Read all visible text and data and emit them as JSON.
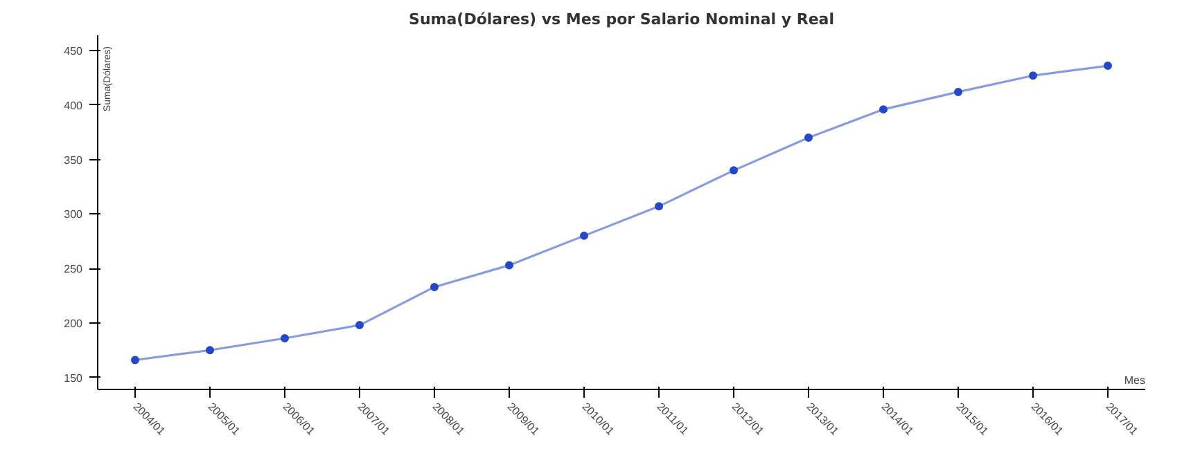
{
  "chart_data": {
    "type": "line",
    "title": "Suma(Dólares) vs Mes por Salario Nominal y Real",
    "xlabel": "Mes",
    "ylabel": "Suma(Dólares)",
    "categories": [
      "2004/01",
      "2005/01",
      "2006/01",
      "2007/01",
      "2008/01",
      "2009/01",
      "2010/01",
      "2011/01",
      "2012/01",
      "2013/01",
      "2014/01",
      "2015/01",
      "2016/01",
      "2017/01"
    ],
    "series": [
      {
        "color": "#2448c8",
        "values": [
          166,
          175,
          186,
          198,
          233,
          253,
          280,
          307,
          340,
          370,
          396,
          412,
          427,
          436
        ]
      }
    ],
    "ylim": [
      139,
      464
    ],
    "yticks": [
      150,
      200,
      250,
      300,
      350,
      400,
      450
    ],
    "grid": false,
    "marker": "circle",
    "line_style": "solid"
  }
}
